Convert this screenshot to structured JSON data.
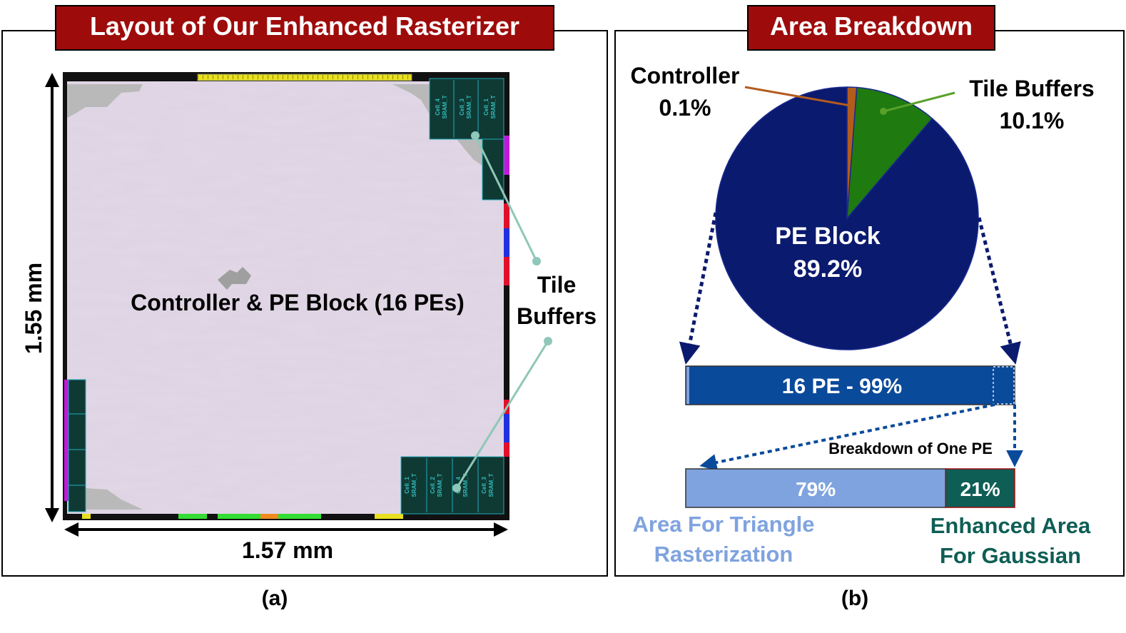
{
  "panel_a": {
    "title": "Layout of Our Enhanced Rasterizer",
    "caption": "(a)",
    "die_label": "Controller & PE Block (16 PEs)",
    "tile_buffers_line1": "Tile",
    "tile_buffers_line2": "Buffers",
    "height_label": "1.55 mm",
    "width_label": "1.57 mm",
    "sram_cell_labels": [
      "Cell_4",
      "Cell_3",
      "Cell_1",
      "Cell_1",
      "Cell_2",
      "Cell_4",
      "Cell_3"
    ],
    "sram_macro_label": "SRAM_T"
  },
  "panel_b": {
    "title": "Area Breakdown",
    "caption": "(b)",
    "pie": {
      "controller_label": "Controller",
      "controller_pct": "0.1%",
      "tile_label": "Tile Buffers",
      "tile_pct": "10.1%",
      "pe_label": "PE Block",
      "pe_pct": "89.2%"
    },
    "pe_bar_label": "16 PE - 99%",
    "one_pe_caption": "Breakdown of One PE",
    "tri_pct_label": "79%",
    "gauss_pct_label": "21%",
    "tri_area_line1": "Area For Triangle",
    "tri_area_line2": "Rasterization",
    "gauss_area_line1": "Enhanced Area",
    "gauss_area_line2": "For Gaussian"
  },
  "chart_data": [
    {
      "type": "pie",
      "title": "Area Breakdown",
      "labels": [
        "Controller",
        "Tile Buffers",
        "PE Block"
      ],
      "values": [
        0.1,
        10.1,
        89.2
      ],
      "colors": [
        "#b35c1e",
        "#1f7a10",
        "#0a1a6e"
      ]
    },
    {
      "type": "bar",
      "stacked": true,
      "categories": [
        "16 PE",
        "other"
      ],
      "values": [
        99,
        1
      ]
    },
    {
      "type": "bar",
      "stacked": true,
      "title": "Breakdown of One PE",
      "categories": [
        "Area For Triangle Rasterization",
        "Enhanced Area For Gaussian"
      ],
      "values": [
        79,
        21
      ],
      "colors": [
        "#7fa3de",
        "#0e5e55"
      ]
    }
  ],
  "colors": {
    "title_bg": "#9e0b0b",
    "die_fill": "#ddd3e2",
    "pe_block": "#0a1a6e",
    "controller": "#b35c1e",
    "tile_buffers": "#1f7a10",
    "pe_bar": "#0a4a9a",
    "triangle_area": "#7fa3de",
    "gaussian_area": "#0e5e55",
    "leader_line": "#8fc7b8"
  }
}
